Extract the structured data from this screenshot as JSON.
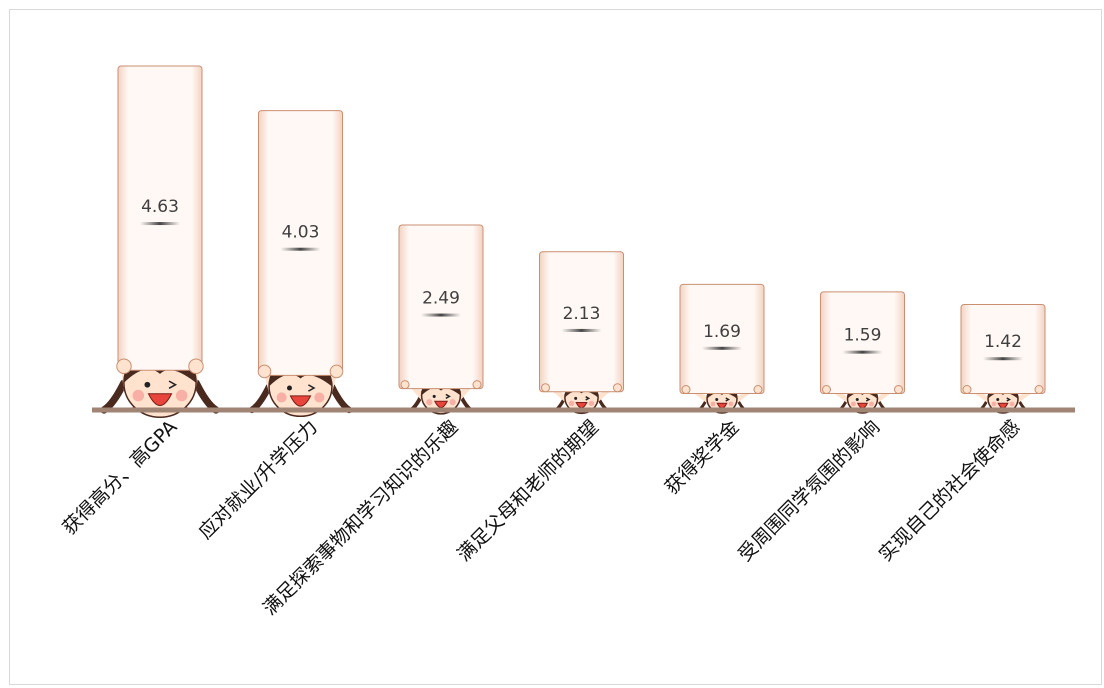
{
  "chart_data": {
    "type": "bar",
    "title": "",
    "xlabel": "",
    "ylabel": "",
    "ylim": [
      0,
      5
    ],
    "categories": [
      "获得高分、高GPA",
      "应对就业/升学压力",
      "满足探索事物和学习知识的乐趣",
      "满足父母和老师的期望",
      "获得奖学金",
      "受周围同学氛围的影响",
      "实现自己的社会使命感"
    ],
    "values": [
      4.63,
      4.03,
      2.49,
      2.13,
      1.69,
      1.59,
      1.42
    ],
    "value_labels": [
      "4.63",
      "4.03",
      "2.49",
      "2.13",
      "1.69",
      "1.59",
      "1.42"
    ],
    "grid": false,
    "legend": "none"
  },
  "colors": {
    "sign_fill": "#fff6f1",
    "sign_edge": "#c98f72",
    "baseline": "#a08575",
    "hair": "#4a2a1e",
    "face": "#ffe3cf",
    "mouth": "#e8453c",
    "cheek": "#f6a19b",
    "shirt": "#e2483f"
  }
}
